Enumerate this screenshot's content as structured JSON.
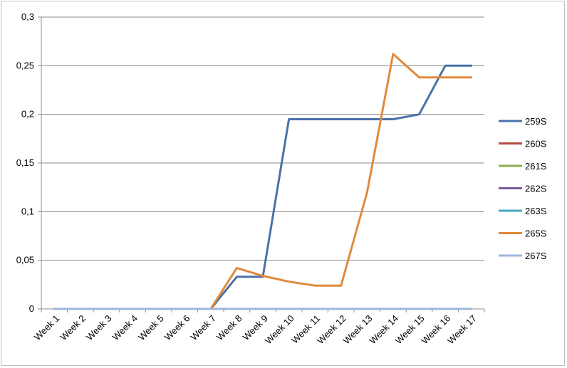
{
  "chart_data": {
    "type": "line",
    "title": "",
    "xlabel": "",
    "ylabel": "",
    "ylim": [
      0,
      0.3
    ],
    "y_ticks": [
      "0",
      "0,05",
      "0,1",
      "0,15",
      "0,2",
      "0,25",
      "0,3"
    ],
    "y_tick_values": [
      0,
      0.05,
      0.1,
      0.15,
      0.2,
      0.25,
      0.3
    ],
    "grid": true,
    "legend_position": "right",
    "categories": [
      "Week 1",
      "Week 2",
      "Week 3",
      "Week 4",
      "Week 5",
      "Week 6",
      "Week 7",
      "Week 8",
      "Week 9",
      "Week 10",
      "Week 11",
      "Week 12",
      "Week 13",
      "Week 14",
      "Week 15",
      "Week 16",
      "Week 17"
    ],
    "series": [
      {
        "name": "259S",
        "color": "#4a72a8",
        "values": [
          0,
          0,
          0,
          0,
          0,
          0,
          0,
          0.033,
          0.033,
          0.195,
          0.195,
          0.195,
          0.195,
          0.195,
          0.2,
          0.25,
          0.25
        ]
      },
      {
        "name": "260S",
        "color": "#b84a3e",
        "values": [
          0,
          0,
          0,
          0,
          0,
          0,
          0,
          0,
          0,
          0,
          0,
          0,
          0,
          0,
          0,
          0,
          0
        ]
      },
      {
        "name": "261S",
        "color": "#8fb04c",
        "values": [
          0,
          0,
          0,
          0,
          0,
          0,
          0,
          0,
          0,
          0,
          0,
          0,
          0,
          0,
          0,
          0,
          0
        ]
      },
      {
        "name": "262S",
        "color": "#7a5c9e",
        "values": [
          0,
          0,
          0,
          0,
          0,
          0,
          0,
          0,
          0,
          0,
          0,
          0,
          0,
          0,
          0,
          0,
          0
        ]
      },
      {
        "name": "263S",
        "color": "#4aa7c0",
        "values": [
          0,
          0,
          0,
          0,
          0,
          0,
          0,
          0,
          0,
          0,
          0,
          0,
          0,
          0,
          0,
          0,
          0
        ]
      },
      {
        "name": "265S",
        "color": "#e08a3c",
        "values": [
          0,
          0,
          0,
          0,
          0,
          0,
          0,
          0.042,
          0.034,
          0.028,
          0.024,
          0.024,
          0.12,
          0.262,
          0.238,
          0.238,
          0.238
        ]
      },
      {
        "name": "267S",
        "color": "#9db7de",
        "values": [
          0,
          0,
          0,
          0,
          0,
          0,
          0,
          0,
          0,
          0,
          0,
          0,
          0,
          0,
          0,
          0,
          0
        ]
      }
    ]
  }
}
